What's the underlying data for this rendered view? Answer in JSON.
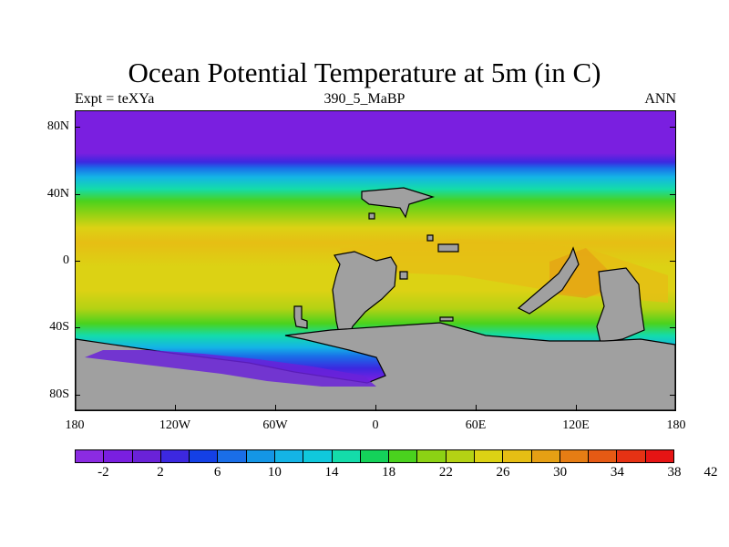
{
  "figure": {
    "title": "Ocean Potential Temperature at 5m (in C)",
    "left_string": "Expt = teXYa",
    "center_string": "390_5_MaBP",
    "right_string": "ANN"
  },
  "axes": {
    "y_ticks": [
      {
        "label": "80N",
        "lat": 80
      },
      {
        "label": "40N",
        "lat": 40
      },
      {
        "label": "0",
        "lat": 0
      },
      {
        "label": "40S",
        "lat": -40
      },
      {
        "label": "80S",
        "lat": -80
      }
    ],
    "x_ticks": [
      {
        "label": "180",
        "lon": -180
      },
      {
        "label": "120W",
        "lon": -120
      },
      {
        "label": "60W",
        "lon": -60
      },
      {
        "label": "0",
        "lon": 0
      },
      {
        "label": "60E",
        "lon": 60
      },
      {
        "label": "120E",
        "lon": 120
      },
      {
        "label": "180",
        "lon": 180
      }
    ],
    "lat_range": [
      -90,
      90
    ],
    "lon_range": [
      -180,
      180
    ]
  },
  "colorbar": {
    "colors": [
      "#8b2be2",
      "#7a1fe0",
      "#6a22d8",
      "#3c28e0",
      "#1440e6",
      "#1a6ee8",
      "#1496e6",
      "#14b4e6",
      "#10c8dc",
      "#14dcaa",
      "#14d25a",
      "#4ad21e",
      "#8cd214",
      "#b4d214",
      "#dcd214",
      "#e6be14",
      "#e6a014",
      "#e67d14",
      "#e65a14",
      "#e63214",
      "#e61414"
    ],
    "labels": [
      "-2",
      "2",
      "6",
      "10",
      "14",
      "18",
      "22",
      "26",
      "30",
      "34",
      "38",
      "42"
    ],
    "label_boundaries": [
      1,
      3,
      5,
      7,
      9,
      11,
      13,
      15,
      17,
      19,
      21,
      23
    ]
  },
  "land_color": "#a0a0a0"
}
